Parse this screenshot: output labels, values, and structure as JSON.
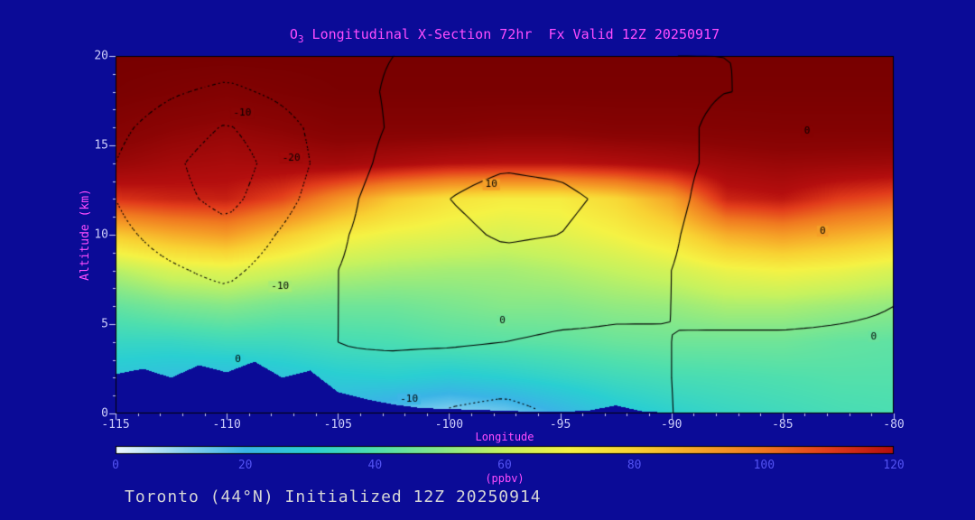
{
  "title": {
    "prefix": "O",
    "sub": "3",
    "rest": " Longitudinal X-Section 72hr  Fx Valid 12Z 20250917"
  },
  "footer": {
    "text": "Toronto (44°N) Initialized 12Z 20250914"
  },
  "colors": {
    "background": "#0b0b97",
    "title": "#ff4dff",
    "axis_tick_label": "#cccdfa",
    "colorbar_tick_label": "#5353f2",
    "footer": "#d6d6d6",
    "contour": "#000000",
    "tick": "#cccdfa"
  },
  "chart_data": {
    "type": "heatmap",
    "title": "O3 Longitudinal X-Section 72hr  Fx Valid 12Z 20250917",
    "xlabel": "Longitude",
    "ylabel": "Altitude (km)",
    "colorbar_label": "(ppbv)",
    "units": "ppbv",
    "xlim": [
      -115,
      -80
    ],
    "ylim": [
      0,
      20
    ],
    "x_ticks": [
      -115,
      -110,
      -105,
      -100,
      -95,
      -90,
      -85,
      -80
    ],
    "y_ticks": [
      0,
      5,
      10,
      15,
      20
    ],
    "colorbar_ticks": [
      0,
      20,
      40,
      60,
      80,
      100,
      120
    ],
    "colorbar_range": [
      0,
      120
    ],
    "legend_position": "bottom",
    "grid": false,
    "lon": [
      -115,
      -112.5,
      -110,
      -107.5,
      -105,
      -102.5,
      -100,
      -97.5,
      -95,
      -92.5,
      -90,
      -87.5,
      -85,
      -82.5,
      -80
    ],
    "alt": [
      20,
      18,
      16,
      14,
      12,
      10,
      8,
      6,
      4,
      2,
      0
    ],
    "ozone_ppbv": [
      [
        150,
        150,
        150,
        150,
        150,
        150,
        150,
        150,
        150,
        150,
        150,
        150,
        150,
        150,
        150
      ],
      [
        148,
        145,
        142,
        145,
        148,
        148,
        148,
        148,
        148,
        148,
        148,
        148,
        148,
        148,
        148
      ],
      [
        140,
        135,
        132,
        135,
        140,
        140,
        140,
        138,
        138,
        140,
        140,
        141,
        142,
        142,
        142
      ],
      [
        130,
        126,
        124,
        125,
        126,
        123,
        120,
        119,
        119,
        121,
        124,
        128,
        130,
        129,
        128
      ],
      [
        112,
        115,
        116,
        108,
        94,
        82,
        75,
        72,
        72,
        78,
        90,
        115,
        118,
        110,
        106
      ],
      [
        82,
        88,
        92,
        82,
        72,
        68,
        66,
        64,
        66,
        70,
        76,
        88,
        92,
        88,
        84
      ],
      [
        58,
        64,
        66,
        62,
        58,
        56,
        55,
        55,
        57,
        60,
        63,
        68,
        70,
        68,
        64
      ],
      [
        44,
        48,
        50,
        47,
        46,
        46,
        48,
        50,
        50,
        52,
        53,
        56,
        56,
        54,
        52
      ],
      [
        34,
        34,
        36,
        36,
        38,
        39,
        41,
        42,
        43,
        45,
        46,
        46,
        46,
        44,
        43
      ],
      [
        26,
        24,
        23,
        26,
        29,
        30,
        28,
        30,
        33,
        36,
        38,
        39,
        40,
        41,
        41
      ],
      [
        22,
        20,
        20,
        22,
        20,
        14,
        10,
        13,
        20,
        27,
        31,
        34,
        36,
        38,
        39
      ]
    ],
    "anomaly": [
      [
        -2,
        -4,
        -5,
        -4,
        -2,
        0,
        1,
        2,
        2,
        1,
        0,
        0,
        0,
        0,
        0
      ],
      [
        -5,
        -9,
        -12,
        -8,
        -3,
        1,
        2,
        3,
        3,
        2,
        1,
        0,
        0,
        0,
        0
      ],
      [
        -8,
        -14,
        -21,
        -13,
        -5,
        1,
        4,
        5,
        5,
        3,
        1,
        -1,
        -1,
        -1,
        0
      ],
      [
        -10,
        -18,
        -26,
        -15,
        -5,
        3,
        7,
        9,
        8,
        5,
        2,
        -2,
        -3,
        -2,
        0
      ],
      [
        -10,
        -17,
        -23,
        -13,
        -3,
        5,
        10,
        13,
        12,
        8,
        2,
        -4,
        -5,
        -3,
        -1
      ],
      [
        -8,
        -13,
        -17,
        -9,
        -1,
        4,
        8,
        11,
        10,
        6,
        1,
        -5,
        -6,
        -3,
        -1
      ],
      [
        -6,
        -9,
        -12,
        -6,
        0,
        3,
        6,
        7,
        6,
        4,
        0,
        -4,
        -4,
        -2,
        -1
      ],
      [
        -4,
        -6,
        -7,
        -3,
        0,
        2,
        3,
        3,
        2,
        1,
        0,
        -2,
        -2,
        -1,
        0
      ],
      [
        -2,
        -3,
        -3,
        -1,
        0,
        1,
        1,
        0,
        -1,
        -1,
        0,
        1,
        1,
        1,
        1
      ],
      [
        -1,
        -2,
        -2,
        -1,
        -1,
        -3,
        -5,
        -6,
        -4,
        -1,
        0,
        1,
        1,
        1,
        1
      ],
      [
        0,
        -1,
        -1,
        0,
        -2,
        -6,
        -11,
        -13,
        -9,
        -3,
        0,
        1,
        2,
        2,
        2
      ]
    ],
    "contour_levels": [
      -20,
      -10,
      0,
      10
    ],
    "contour_labels": [
      {
        "text": "-10",
        "lon": -109.3,
        "alt": 16.8
      },
      {
        "text": "-20",
        "lon": -107.1,
        "alt": 14.3
      },
      {
        "text": "10",
        "lon": -98.1,
        "alt": 12.8
      },
      {
        "text": "-10",
        "lon": -107.6,
        "alt": 7.1
      },
      {
        "text": "0",
        "lon": -97.6,
        "alt": 5.2
      },
      {
        "text": "0",
        "lon": -109.5,
        "alt": 3.0
      },
      {
        "text": "-10",
        "lon": -101.8,
        "alt": 0.8
      },
      {
        "text": "0",
        "lon": -83.9,
        "alt": 15.8
      },
      {
        "text": "0",
        "lon": -83.2,
        "alt": 10.2
      },
      {
        "text": "0",
        "lon": -80.9,
        "alt": 4.3
      }
    ],
    "terrain_km": [
      2.2,
      2.5,
      2.0,
      2.7,
      2.3,
      2.9,
      2.0,
      2.4,
      1.2,
      0.8,
      0.5,
      0.3,
      0.25,
      0.2,
      0.15,
      0.1,
      0.1,
      0.15,
      0.45,
      0.1,
      0.05,
      0,
      0,
      0,
      0,
      0,
      0,
      0,
      0
    ],
    "colormap": [
      {
        "v": 0,
        "c": "#eef8ff"
      },
      {
        "v": 10,
        "c": "#8dd3f0"
      },
      {
        "v": 20,
        "c": "#3ab4e6"
      },
      {
        "v": 30,
        "c": "#2acfd2"
      },
      {
        "v": 40,
        "c": "#4fdfae"
      },
      {
        "v": 50,
        "c": "#85e88a"
      },
      {
        "v": 60,
        "c": "#c6f25f"
      },
      {
        "v": 70,
        "c": "#f5f244"
      },
      {
        "v": 80,
        "c": "#f8d233"
      },
      {
        "v": 90,
        "c": "#f6a428"
      },
      {
        "v": 100,
        "c": "#f07820"
      },
      {
        "v": 110,
        "c": "#e23c1b"
      },
      {
        "v": 120,
        "c": "#b40e0e"
      },
      {
        "v": 135,
        "c": "#8b0404"
      },
      {
        "v": 150,
        "c": "#780000"
      }
    ]
  }
}
